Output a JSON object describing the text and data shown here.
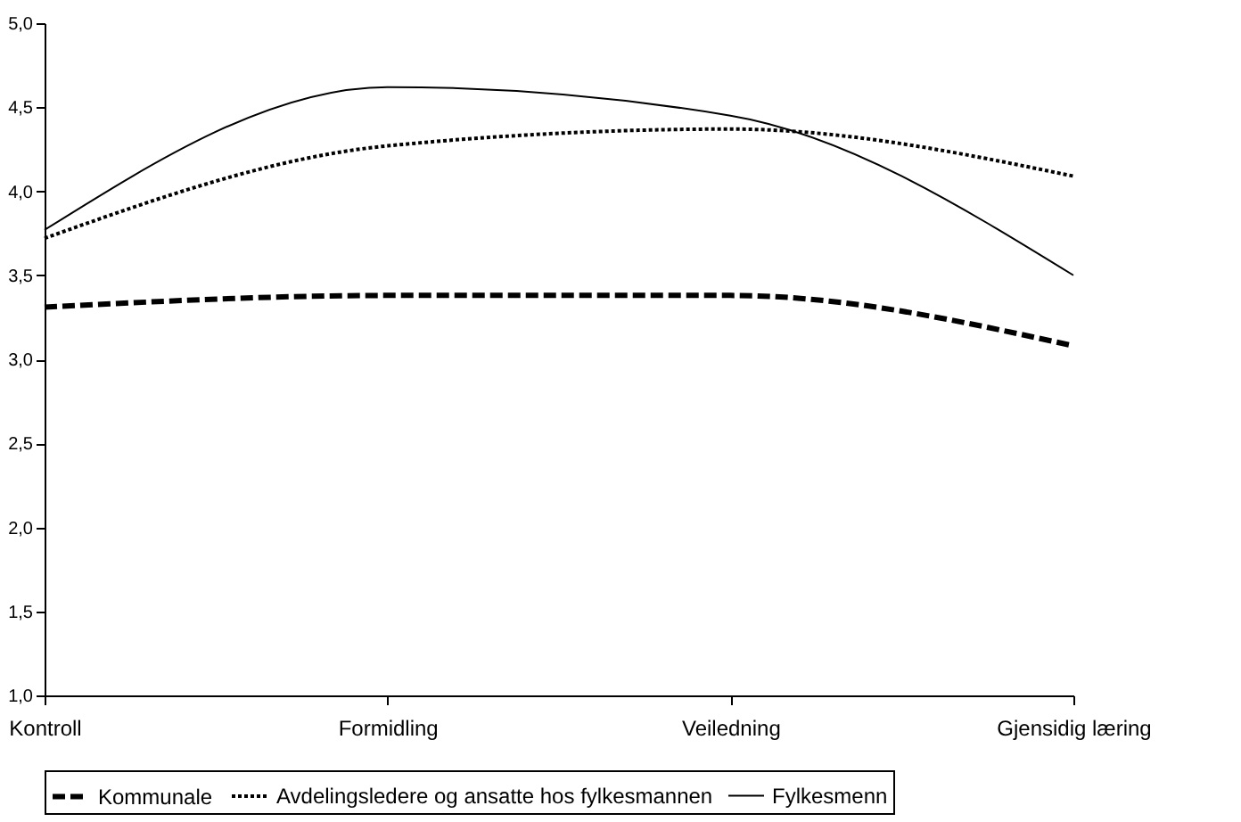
{
  "chart_data": {
    "type": "line",
    "categories": [
      "Kontroll",
      "Formidling",
      "Veiledning",
      "Gjensidig læring"
    ],
    "series": [
      {
        "name": "Kommunale",
        "color": "#000000",
        "line_style": "dashed",
        "values": [
          3.31,
          3.38,
          3.38,
          3.08
        ]
      },
      {
        "name": "Avdelingsledere og ansatte hos fylkesmannen",
        "color": "#000000",
        "line_style": "dotted",
        "values": [
          3.72,
          4.27,
          4.37,
          4.09
        ]
      },
      {
        "name": "Fylkesmenn",
        "color": "#000000",
        "line_style": "solid",
        "values": [
          3.77,
          4.62,
          4.45,
          3.5
        ]
      }
    ],
    "ylim": [
      1,
      5
    ],
    "yticks": [
      {
        "value": 1,
        "label": "1,0"
      },
      {
        "value": 1.5,
        "label": "1,5"
      },
      {
        "value": 2,
        "label": "2,0"
      },
      {
        "value": 2.5,
        "label": "2,5"
      },
      {
        "value": 3,
        "label": "3,0"
      },
      {
        "value": 3.5,
        "label": "3,5"
      },
      {
        "value": 4,
        "label": "4,0"
      },
      {
        "value": 4.5,
        "label": "4,5"
      },
      {
        "value": 5,
        "label": "5,0"
      }
    ],
    "grid": false,
    "legend": "bottom",
    "marker": "none"
  }
}
